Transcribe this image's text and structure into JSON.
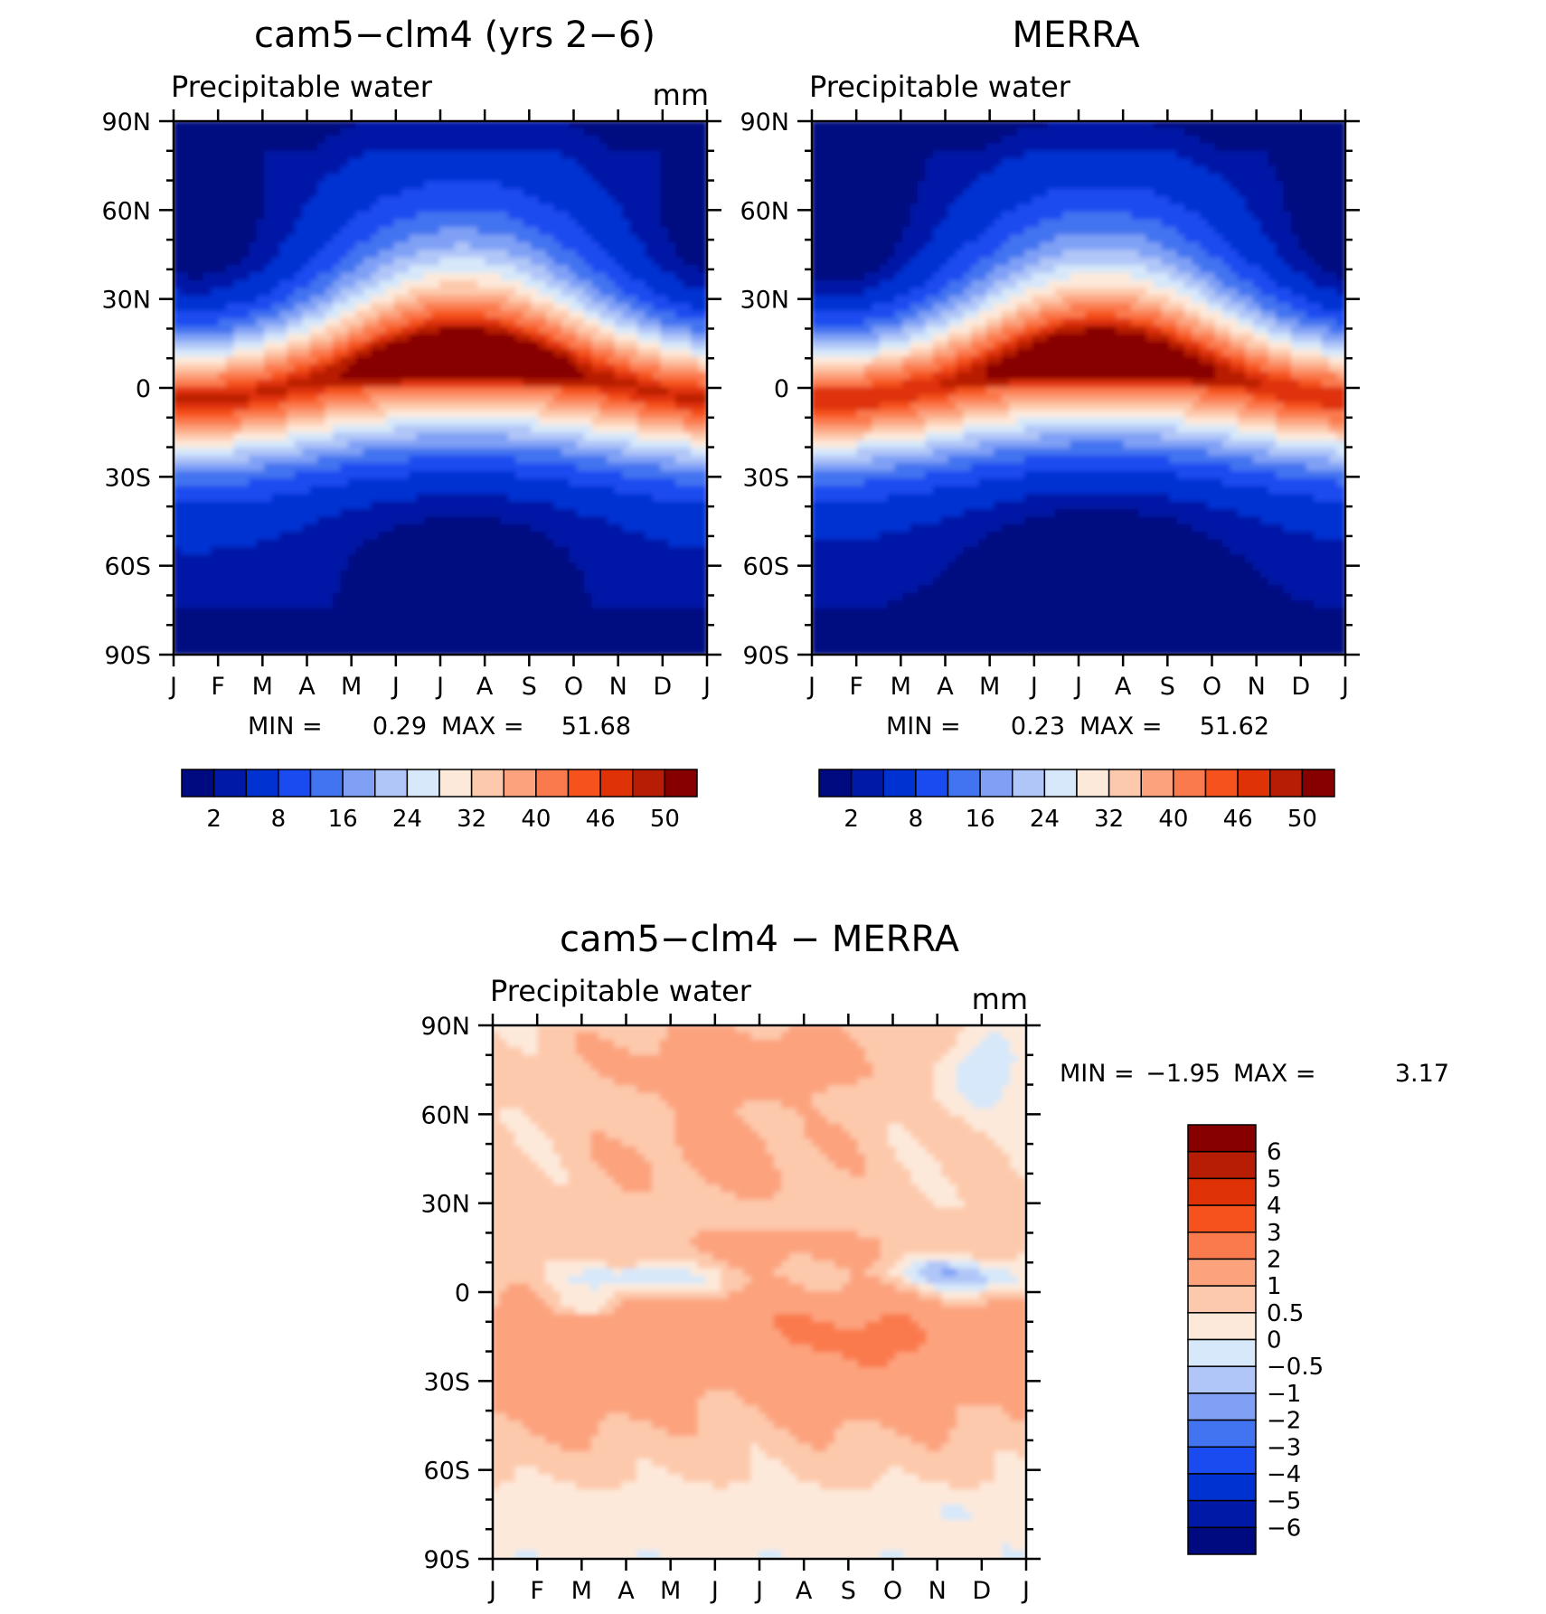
{
  "figure": {
    "panels": [
      {
        "title": "cam5−clm4 (yrs 2−6)",
        "subtitle": "Precipitable water",
        "units": "mm",
        "min_label": "MIN =",
        "min_value": "0.29",
        "max_label": "MAX =",
        "max_value": "51.68"
      },
      {
        "title": "MERRA",
        "subtitle": "Precipitable water",
        "units": "",
        "min_label": "MIN =",
        "min_value": "0.23",
        "max_label": "MAX =",
        "max_value": "51.62"
      },
      {
        "title": "cam5−clm4 − MERRA",
        "subtitle": "Precipitable water",
        "units": "mm",
        "min_label": "MIN =",
        "min_value": "−1.95",
        "max_label": "MAX =",
        "max_value": "3.17"
      }
    ],
    "months": [
      "J",
      "F",
      "M",
      "A",
      "M",
      "J",
      "J",
      "A",
      "S",
      "O",
      "N",
      "D",
      "J"
    ],
    "lat_labels": [
      "90N",
      "60N",
      "30N",
      "0",
      "30S",
      "60S",
      "90S"
    ],
    "colors": {
      "abs": [
        "#000a80",
        "#0019a6",
        "#0032d2",
        "#1a4bf0",
        "#4273f0",
        "#7fa0f5",
        "#b0c6f8",
        "#d6e8fa",
        "#fde9da",
        "#fdc9ac",
        "#fca37e",
        "#fb7a4d",
        "#f6521e",
        "#df3207",
        "#b71c05",
        "#870000"
      ],
      "diff": [
        "#000a80",
        "#0019a6",
        "#0032d2",
        "#1a4bf0",
        "#4273f0",
        "#7fa0f5",
        "#b0c6f8",
        "#d6e8fa",
        "#fde9da",
        "#fdc9ac",
        "#fca37e",
        "#fb7a4d",
        "#f6521e",
        "#df3207",
        "#b71c05",
        "#870000"
      ]
    },
    "colorbar_abs": [
      "2",
      "8",
      "16",
      "24",
      "32",
      "40",
      "46",
      "50"
    ],
    "colorbar_diff": [
      "6",
      "5",
      "4",
      "3",
      "2",
      "1",
      "0.5",
      "0",
      "−0.5",
      "−1",
      "−2",
      "−3",
      "−4",
      "−5",
      "−6"
    ]
  },
  "chart_data": [
    {
      "type": "heatmap",
      "title": "cam5−clm4 (yrs 2−6)",
      "subtitle": "Precipitable water",
      "units": "mm",
      "x": [
        "J",
        "F",
        "M",
        "A",
        "M",
        "J",
        "J",
        "A",
        "S",
        "O",
        "N",
        "D",
        "J"
      ],
      "y": [
        "90N",
        "60N",
        "30N",
        "0",
        "30S",
        "60S",
        "90S"
      ],
      "min": 0.29,
      "max": 51.68,
      "levels": [
        2,
        4,
        8,
        12,
        16,
        20,
        24,
        28,
        32,
        36,
        40,
        44,
        46,
        48,
        50
      ],
      "description_values": "zonal-mean precipitable water; maximum (~50 mm) near equator shifting north in JJA"
    },
    {
      "type": "heatmap",
      "title": "MERRA",
      "subtitle": "Precipitable water",
      "x": [
        "J",
        "F",
        "M",
        "A",
        "M",
        "J",
        "J",
        "A",
        "S",
        "O",
        "N",
        "D",
        "J"
      ],
      "y": [
        "90N",
        "60N",
        "30N",
        "0",
        "30S",
        "60S",
        "90S"
      ],
      "min": 0.23,
      "max": 51.62,
      "levels": [
        2,
        4,
        8,
        12,
        16,
        20,
        24,
        28,
        32,
        36,
        40,
        44,
        46,
        48,
        50
      ]
    },
    {
      "type": "heatmap",
      "title": "cam5−clm4 − MERRA",
      "subtitle": "Precipitable water",
      "units": "mm",
      "x": [
        "J",
        "F",
        "M",
        "A",
        "M",
        "J",
        "J",
        "A",
        "S",
        "O",
        "N",
        "D",
        "J"
      ],
      "y": [
        "90N",
        "60N",
        "30N",
        "0",
        "30S",
        "60S",
        "90S"
      ],
      "min": -1.95,
      "max": 3.17,
      "levels": [
        -6,
        -5,
        -4,
        -3,
        -2,
        -1,
        -0.5,
        0,
        0.5,
        1,
        2,
        3,
        4,
        5,
        6
      ]
    }
  ]
}
